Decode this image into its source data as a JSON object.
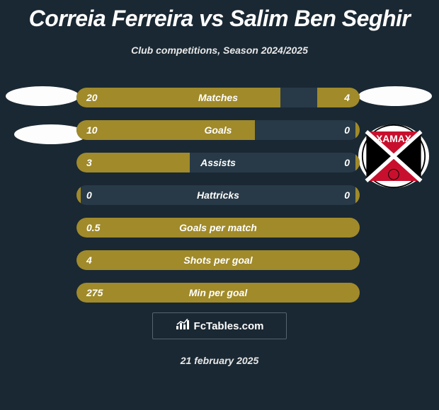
{
  "title": "Correia Ferreira vs Salim Ben Seghir",
  "subtitle": "Club competitions, Season 2024/2025",
  "date": "21 february 2025",
  "fctables_label": "FcTables.com",
  "colors": {
    "background": "#1a2833",
    "bar_fill": "#a08a2a",
    "bar_track": "#283a47",
    "text": "#ffffff",
    "subtext": "#e8e8e8",
    "border": "#566470",
    "badge_bg": "#fdfdfd"
  },
  "rows": [
    {
      "label": "Matches",
      "left": "20",
      "right": "4",
      "left_pct": 72,
      "right_pct": 15
    },
    {
      "label": "Goals",
      "left": "10",
      "right": "0",
      "left_pct": 63,
      "right_pct": 1.5
    },
    {
      "label": "Assists",
      "left": "3",
      "right": "0",
      "left_pct": 40,
      "right_pct": 1.5
    },
    {
      "label": "Hattricks",
      "left": "0",
      "right": "0",
      "left_pct": 1.5,
      "right_pct": 1.5
    },
    {
      "label": "Goals per match",
      "left": "0.5",
      "right": "",
      "left_pct": 100,
      "right_pct": 0
    },
    {
      "label": "Shots per goal",
      "left": "4",
      "right": "",
      "left_pct": 100,
      "right_pct": 0
    },
    {
      "label": "Min per goal",
      "left": "275",
      "right": "",
      "left_pct": 100,
      "right_pct": 0
    }
  ],
  "club_logo": {
    "name": "xamax",
    "text": "XAMAX",
    "bg": "#ffffff",
    "cross": "#000000",
    "triangles": "#c8102e",
    "text_color": "#ffffff"
  }
}
